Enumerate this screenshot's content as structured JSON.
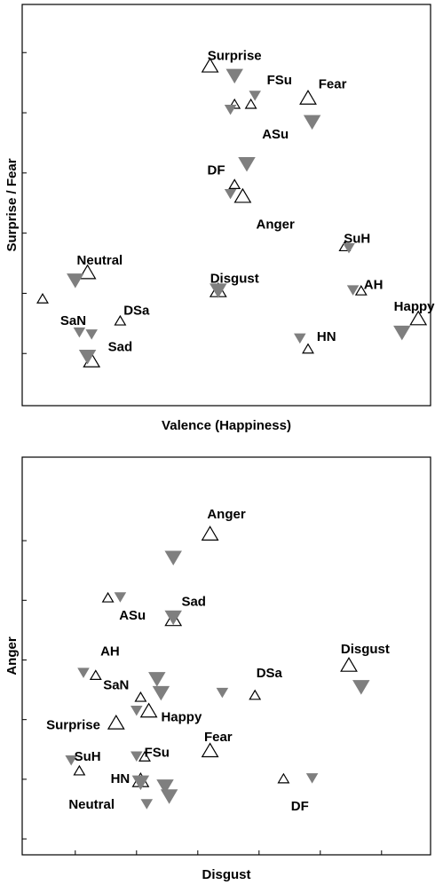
{
  "colors": {
    "frame": "#000000",
    "filled_marker": "#7f7f7f",
    "open_marker": "#000000",
    "background": "#ffffff"
  },
  "chart_data": [
    {
      "type": "scatter",
      "title": "",
      "xlabel": "Valence (Happiness)",
      "ylabel": "Surprise / Fear",
      "xlim": [
        0,
        100
      ],
      "ylim": [
        0,
        100
      ],
      "grid": false,
      "tick_labels": false,
      "x_ticks": [],
      "y_ticks": [
        13,
        28,
        43,
        58,
        73,
        88
      ],
      "series": [
        {
          "marker": "triangle-up-open",
          "points": [
            {
              "x": 46,
              "y": 84.5,
              "size": "large"
            },
            {
              "x": 52,
              "y": 75,
              "size": "small"
            },
            {
              "x": 56,
              "y": 75,
              "size": "small"
            },
            {
              "x": 70,
              "y": 76.5,
              "size": "large"
            },
            {
              "x": 52,
              "y": 55,
              "size": "small"
            },
            {
              "x": 54,
              "y": 52,
              "size": "large"
            },
            {
              "x": 79,
              "y": 39.5,
              "size": "small"
            },
            {
              "x": 16,
              "y": 33,
              "size": "large"
            },
            {
              "x": 5,
              "y": 26.5,
              "size": "small"
            },
            {
              "x": 24,
              "y": 21,
              "size": "small"
            },
            {
              "x": 17,
              "y": 11,
              "size": "large"
            },
            {
              "x": 48,
              "y": 28.5,
              "size": "large"
            },
            {
              "x": 83,
              "y": 28.5,
              "size": "small"
            },
            {
              "x": 97,
              "y": 21.5,
              "size": "large"
            },
            {
              "x": 70,
              "y": 14,
              "size": "small"
            }
          ]
        },
        {
          "marker": "triangle-down-filled",
          "points": [
            {
              "x": 52,
              "y": 82.5,
              "size": "large"
            },
            {
              "x": 57,
              "y": 77.5,
              "size": "small"
            },
            {
              "x": 51,
              "y": 74,
              "size": "small"
            },
            {
              "x": 71,
              "y": 71,
              "size": "large"
            },
            {
              "x": 55,
              "y": 60.5,
              "size": "large"
            },
            {
              "x": 51,
              "y": 53,
              "size": "small"
            },
            {
              "x": 80,
              "y": 39.5,
              "size": "small"
            },
            {
              "x": 81,
              "y": 29,
              "size": "small"
            },
            {
              "x": 13,
              "y": 31.5,
              "size": "large"
            },
            {
              "x": 14,
              "y": 18.5,
              "size": "small"
            },
            {
              "x": 17,
              "y": 18,
              "size": "small"
            },
            {
              "x": 16,
              "y": 12.5,
              "size": "large"
            },
            {
              "x": 48,
              "y": 29,
              "size": "large"
            },
            {
              "x": 93,
              "y": 18.5,
              "size": "large"
            },
            {
              "x": 68,
              "y": 17,
              "size": "small"
            }
          ]
        }
      ],
      "annotations": [
        {
          "text": "Surprise",
          "x": 52,
          "y": 87
        },
        {
          "text": "FSu",
          "x": 63,
          "y": 81
        },
        {
          "text": "Fear",
          "x": 76,
          "y": 80
        },
        {
          "text": "ASu",
          "x": 62,
          "y": 67.5
        },
        {
          "text": "DF",
          "x": 47.5,
          "y": 58.5
        },
        {
          "text": "Anger",
          "x": 62,
          "y": 45
        },
        {
          "text": "SuH",
          "x": 82,
          "y": 41.5
        },
        {
          "text": "Neutral",
          "x": 19,
          "y": 36
        },
        {
          "text": "Disgust",
          "x": 52,
          "y": 31.5
        },
        {
          "text": "AH",
          "x": 86,
          "y": 30
        },
        {
          "text": "DSa",
          "x": 28,
          "y": 23.5
        },
        {
          "text": "Happy",
          "x": 96,
          "y": 24.5
        },
        {
          "text": "SaN",
          "x": 12.5,
          "y": 21
        },
        {
          "text": "HN",
          "x": 74.5,
          "y": 17
        },
        {
          "text": "Sad",
          "x": 24,
          "y": 14.5
        }
      ]
    },
    {
      "type": "scatter",
      "title": "",
      "xlabel": "Disgust",
      "ylabel": "Anger",
      "xlim": [
        0,
        100
      ],
      "ylim": [
        0,
        100
      ],
      "grid": false,
      "tick_labels": false,
      "x_ticks": [
        13,
        28,
        43,
        58,
        73,
        88
      ],
      "y_ticks": [
        4,
        19,
        34,
        49,
        64,
        79
      ],
      "series": [
        {
          "marker": "triangle-up-open",
          "points": [
            {
              "x": 46,
              "y": 80.5,
              "size": "large"
            },
            {
              "x": 21,
              "y": 64.5,
              "size": "small"
            },
            {
              "x": 37,
              "y": 59,
              "size": "large"
            },
            {
              "x": 18,
              "y": 45,
              "size": "small"
            },
            {
              "x": 29,
              "y": 39.5,
              "size": "small"
            },
            {
              "x": 31,
              "y": 36,
              "size": "large"
            },
            {
              "x": 23,
              "y": 33,
              "size": "large"
            },
            {
              "x": 80,
              "y": 47.5,
              "size": "large"
            },
            {
              "x": 57,
              "y": 40,
              "size": "small"
            },
            {
              "x": 46,
              "y": 26,
              "size": "large"
            },
            {
              "x": 14,
              "y": 21,
              "size": "small"
            },
            {
              "x": 30,
              "y": 24.5,
              "size": "small"
            },
            {
              "x": 29,
              "y": 18.5,
              "size": "large"
            },
            {
              "x": 64,
              "y": 19,
              "size": "small"
            }
          ]
        },
        {
          "marker": "triangle-down-filled",
          "points": [
            {
              "x": 37,
              "y": 75,
              "size": "large"
            },
            {
              "x": 24,
              "y": 65,
              "size": "small"
            },
            {
              "x": 37,
              "y": 60,
              "size": "large"
            },
            {
              "x": 15,
              "y": 46,
              "size": "small"
            },
            {
              "x": 33,
              "y": 44.5,
              "size": "large"
            },
            {
              "x": 34,
              "y": 41,
              "size": "large"
            },
            {
              "x": 28,
              "y": 36.5,
              "size": "small"
            },
            {
              "x": 49,
              "y": 41,
              "size": "small"
            },
            {
              "x": 83,
              "y": 42.5,
              "size": "large"
            },
            {
              "x": 12,
              "y": 24,
              "size": "small"
            },
            {
              "x": 28,
              "y": 25,
              "size": "small"
            },
            {
              "x": 29,
              "y": 18.5,
              "size": "large"
            },
            {
              "x": 35,
              "y": 17.5,
              "size": "large"
            },
            {
              "x": 36,
              "y": 15,
              "size": "large"
            },
            {
              "x": 71,
              "y": 19.5,
              "size": "small"
            },
            {
              "x": 30.5,
              "y": 13,
              "size": "small"
            }
          ]
        }
      ],
      "annotations": [
        {
          "text": "Anger",
          "x": 50,
          "y": 85.5
        },
        {
          "text": "ASu",
          "x": 27,
          "y": 60
        },
        {
          "text": "Sad",
          "x": 42,
          "y": 63.5
        },
        {
          "text": "AH",
          "x": 21.5,
          "y": 51
        },
        {
          "text": "Disgust",
          "x": 84,
          "y": 51.5
        },
        {
          "text": "DSa",
          "x": 60.5,
          "y": 45.5
        },
        {
          "text": "SaN",
          "x": 23,
          "y": 42.5
        },
        {
          "text": "Happy",
          "x": 39,
          "y": 34.5
        },
        {
          "text": "Surprise",
          "x": 12.5,
          "y": 32.5
        },
        {
          "text": "Fear",
          "x": 48,
          "y": 29.5
        },
        {
          "text": "FSu",
          "x": 33,
          "y": 25.5
        },
        {
          "text": "SuH",
          "x": 16,
          "y": 24.5
        },
        {
          "text": "HN",
          "x": 24,
          "y": 19
        },
        {
          "text": "Neutral",
          "x": 17,
          "y": 12.5
        },
        {
          "text": "DF",
          "x": 68,
          "y": 12
        }
      ]
    }
  ]
}
